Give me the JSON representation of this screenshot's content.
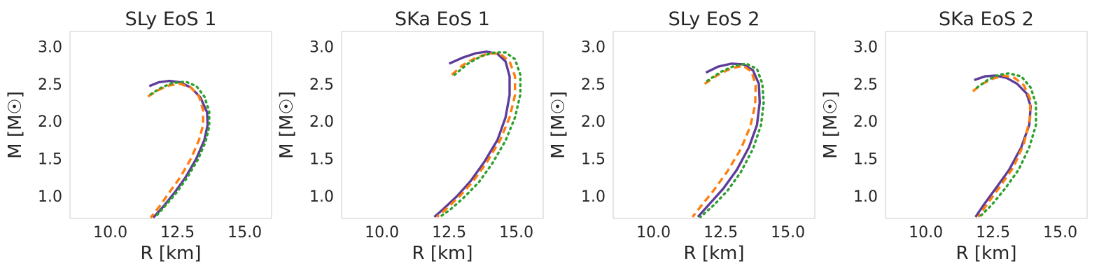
{
  "chart_data": [
    {
      "type": "line",
      "title": "SLy EoS 1",
      "xlabel": "R [km]",
      "ylabel": "M [M☉]",
      "xlim": [
        8.5,
        16.0
      ],
      "ylim": [
        0.7,
        3.2
      ],
      "xticks": [
        "10.0",
        "12.5",
        "15.0"
      ],
      "yticks": [
        "1.0",
        "1.5",
        "2.0",
        "2.5",
        "3.0"
      ],
      "grid": false,
      "series": [
        {
          "color": "#5e3c99",
          "style": "solid",
          "x": [
            11.45,
            11.8,
            12.2,
            12.6,
            13.0,
            13.35,
            13.6,
            13.62,
            13.5,
            13.2,
            12.8,
            12.4,
            12.0,
            11.6
          ],
          "y": [
            2.47,
            2.52,
            2.54,
            2.52,
            2.45,
            2.32,
            2.12,
            1.95,
            1.75,
            1.5,
            1.25,
            1.05,
            0.87,
            0.71
          ]
        },
        {
          "color": "#ff7f0e",
          "style": "dashed",
          "x": [
            11.4,
            11.8,
            12.2,
            12.6,
            13.0,
            13.3,
            13.45,
            13.45,
            13.3,
            13.0,
            12.6,
            12.2,
            11.85,
            11.5
          ],
          "y": [
            2.33,
            2.42,
            2.48,
            2.5,
            2.45,
            2.33,
            2.15,
            1.95,
            1.75,
            1.5,
            1.25,
            1.05,
            0.87,
            0.71
          ]
        },
        {
          "color": "#2ca02c",
          "style": "dotted",
          "x": [
            11.5,
            11.9,
            12.3,
            12.8,
            13.2,
            13.5,
            13.68,
            13.68,
            13.55,
            13.25,
            12.85,
            12.45,
            12.05,
            11.65
          ],
          "y": [
            2.36,
            2.45,
            2.51,
            2.53,
            2.47,
            2.33,
            2.13,
            1.93,
            1.73,
            1.48,
            1.24,
            1.04,
            0.87,
            0.71
          ]
        }
      ]
    },
    {
      "type": "line",
      "title": "SKa EoS 1",
      "xlabel": "R [km]",
      "ylabel": "M [M☉]",
      "xlim": [
        8.5,
        16.0
      ],
      "ylim": [
        0.7,
        3.2
      ],
      "xticks": [
        "10.0",
        "12.5",
        "15.0"
      ],
      "yticks": [
        "1.0",
        "1.5",
        "2.0",
        "2.5",
        "3.0"
      ],
      "grid": false,
      "series": [
        {
          "color": "#5e3c99",
          "style": "solid",
          "x": [
            12.5,
            13.0,
            13.5,
            13.9,
            14.3,
            14.6,
            14.75,
            14.75,
            14.6,
            14.3,
            13.8,
            13.3,
            12.8,
            12.3,
            11.95
          ],
          "y": [
            2.77,
            2.85,
            2.91,
            2.93,
            2.9,
            2.8,
            2.6,
            2.35,
            2.05,
            1.75,
            1.45,
            1.2,
            1.0,
            0.83,
            0.72
          ]
        },
        {
          "color": "#ff7f0e",
          "style": "dashed",
          "x": [
            12.6,
            13.0,
            13.5,
            14.0,
            14.4,
            14.75,
            14.95,
            14.95,
            14.75,
            14.4,
            13.9,
            13.4,
            12.9,
            12.4,
            12.05
          ],
          "y": [
            2.62,
            2.75,
            2.85,
            2.91,
            2.9,
            2.8,
            2.6,
            2.35,
            2.05,
            1.75,
            1.45,
            1.2,
            1.0,
            0.83,
            0.72
          ]
        },
        {
          "color": "#2ca02c",
          "style": "dotted",
          "x": [
            12.7,
            13.2,
            13.7,
            14.2,
            14.6,
            14.95,
            15.15,
            15.15,
            14.95,
            14.6,
            14.1,
            13.6,
            13.05,
            12.55,
            12.15
          ],
          "y": [
            2.62,
            2.77,
            2.87,
            2.92,
            2.92,
            2.83,
            2.62,
            2.36,
            2.05,
            1.74,
            1.43,
            1.18,
            0.98,
            0.82,
            0.72
          ]
        }
      ]
    },
    {
      "type": "line",
      "title": "SLy EoS 2",
      "xlabel": "R [km]",
      "ylabel": "M [M☉]",
      "xlim": [
        8.5,
        16.0
      ],
      "ylim": [
        0.7,
        3.2
      ],
      "xticks": [
        "10.0",
        "12.5",
        "15.0"
      ],
      "yticks": [
        "1.0",
        "1.5",
        "2.0",
        "2.5",
        "3.0"
      ],
      "grid": false,
      "series": [
        {
          "color": "#5e3c99",
          "style": "solid",
          "x": [
            11.95,
            12.4,
            12.9,
            13.35,
            13.7,
            13.92,
            13.95,
            13.85,
            13.55,
            13.1,
            12.6,
            12.1,
            11.65
          ],
          "y": [
            2.65,
            2.73,
            2.77,
            2.76,
            2.68,
            2.5,
            2.25,
            1.95,
            1.65,
            1.35,
            1.1,
            0.9,
            0.72
          ]
        },
        {
          "color": "#ff7f0e",
          "style": "dashed",
          "x": [
            11.9,
            12.4,
            12.9,
            13.35,
            13.65,
            13.8,
            13.78,
            13.6,
            13.25,
            12.75,
            12.25,
            11.8,
            11.45
          ],
          "y": [
            2.5,
            2.62,
            2.71,
            2.74,
            2.66,
            2.48,
            2.22,
            1.93,
            1.63,
            1.33,
            1.08,
            0.88,
            0.72
          ]
        },
        {
          "color": "#2ca02c",
          "style": "dotted",
          "x": [
            12.0,
            12.5,
            13.0,
            13.45,
            13.85,
            14.05,
            14.1,
            14.0,
            13.7,
            13.25,
            12.75,
            12.25,
            11.75
          ],
          "y": [
            2.54,
            2.66,
            2.74,
            2.77,
            2.7,
            2.5,
            2.25,
            1.95,
            1.63,
            1.32,
            1.07,
            0.88,
            0.72
          ]
        }
      ]
    },
    {
      "type": "line",
      "title": "SKa EoS 2",
      "xlabel": "R [km]",
      "ylabel": "M [M☉]",
      "xlim": [
        8.5,
        16.0
      ],
      "ylim": [
        0.7,
        3.2
      ],
      "xticks": [
        "10.0",
        "12.5",
        "15.0"
      ],
      "yticks": [
        "1.0",
        "1.5",
        "2.0",
        "2.5",
        "3.0"
      ],
      "grid": false,
      "series": [
        {
          "color": "#5e3c99",
          "style": "solid",
          "x": [
            11.8,
            12.2,
            12.6,
            13.0,
            13.4,
            13.75,
            13.9,
            13.85,
            13.55,
            13.1,
            12.6,
            12.15,
            11.85
          ],
          "y": [
            2.55,
            2.6,
            2.61,
            2.58,
            2.5,
            2.37,
            2.2,
            1.95,
            1.65,
            1.35,
            1.1,
            0.88,
            0.72
          ]
        },
        {
          "color": "#ff7f0e",
          "style": "dashed",
          "x": [
            11.75,
            12.1,
            12.5,
            12.9,
            13.3,
            13.65,
            13.88,
            13.88,
            13.65,
            13.25,
            12.75,
            12.3,
            11.95
          ],
          "y": [
            2.4,
            2.5,
            2.57,
            2.61,
            2.58,
            2.48,
            2.3,
            2.05,
            1.7,
            1.38,
            1.12,
            0.9,
            0.72
          ]
        },
        {
          "color": "#2ca02c",
          "style": "dotted",
          "x": [
            11.9,
            12.3,
            12.7,
            13.1,
            13.55,
            13.9,
            14.1,
            14.1,
            13.85,
            13.45,
            12.95,
            12.45,
            12.0
          ],
          "y": [
            2.45,
            2.55,
            2.62,
            2.64,
            2.6,
            2.45,
            2.23,
            1.95,
            1.65,
            1.35,
            1.1,
            0.88,
            0.72
          ]
        }
      ]
    }
  ]
}
